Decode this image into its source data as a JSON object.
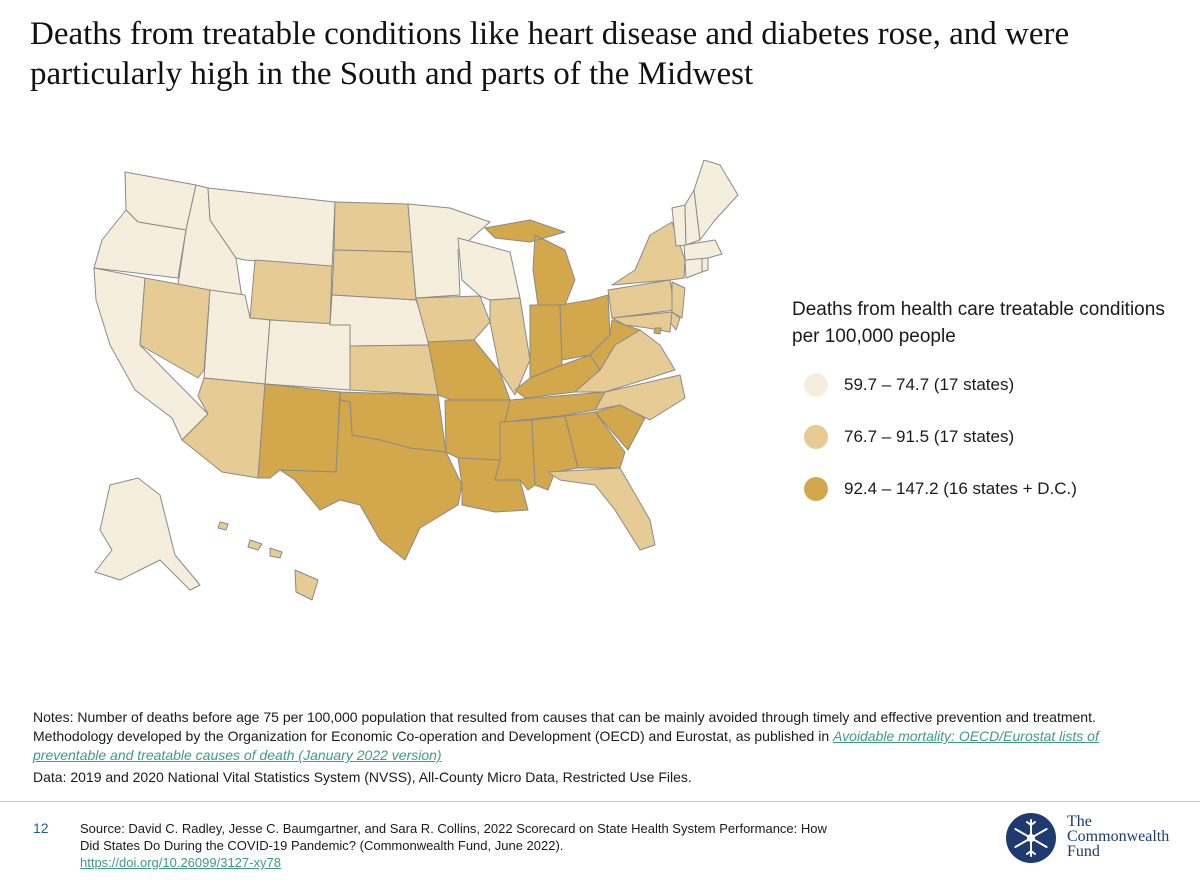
{
  "title": "Deaths from treatable conditions like heart disease and diabetes rose, and were particularly high in the South and parts of the Midwest",
  "legend": {
    "title": "Deaths from health care treatable conditions per 100,000 people",
    "items": [
      {
        "label": "59.7 – 74.7 (17 states)",
        "color": "#f5eedd"
      },
      {
        "label": "76.7 – 91.5 (17 states)",
        "color": "#e6cc94"
      },
      {
        "label": "92.4 – 147.2 (16 states + D.C.)",
        "color": "#d3a84c"
      }
    ]
  },
  "notes": {
    "text": "Notes: Number of deaths before age 75 per 100,000 population that resulted from causes that can be mainly avoided through timely and effective prevention and treatment. Methodology developed by the Organization for Economic Co-operation and Development (OECD) and Eurostat, as published in ",
    "link": "Avoidable mortality: OECD/Eurostat lists of preventable and treatable causes of death (January 2022 version)",
    "data": "Data: 2019 and 2020 National Vital Statistics System (NVSS), All-County Micro Data, Restricted Use Files."
  },
  "footer": {
    "page_number": "12",
    "source": "Source: David C. Radley, Jesse C. Baumgartner, and Sara R. Collins, 2022 Scorecard on State Health System Performance: How Did States Do During the COVID-19 Pandemic? (Commonwealth Fund, June 2022).",
    "doi": "https://doi.org/10.26099/3127-xy78"
  },
  "logo": {
    "line1": "The",
    "line2": "Commonwealth",
    "line3": "Fund",
    "color": "#1e3a6e"
  },
  "map": {
    "colors": {
      "low": "#f5eedd",
      "mid": "#e6cc94",
      "high": "#d3a84c",
      "border": "#8a8a8a"
    },
    "states": [
      {
        "id": "WA",
        "tier": "low"
      },
      {
        "id": "OR",
        "tier": "low"
      },
      {
        "id": "CA",
        "tier": "low"
      },
      {
        "id": "ID",
        "tier": "low"
      },
      {
        "id": "NV",
        "tier": "mid"
      },
      {
        "id": "MT",
        "tier": "low"
      },
      {
        "id": "WY",
        "tier": "mid"
      },
      {
        "id": "UT",
        "tier": "low"
      },
      {
        "id": "AZ",
        "tier": "mid"
      },
      {
        "id": "CO",
        "tier": "low"
      },
      {
        "id": "NM",
        "tier": "high"
      },
      {
        "id": "ND",
        "tier": "mid"
      },
      {
        "id": "SD",
        "tier": "mid"
      },
      {
        "id": "NE",
        "tier": "low"
      },
      {
        "id": "KS",
        "tier": "mid"
      },
      {
        "id": "OK",
        "tier": "high"
      },
      {
        "id": "TX",
        "tier": "high"
      },
      {
        "id": "MN",
        "tier": "low"
      },
      {
        "id": "IA",
        "tier": "mid"
      },
      {
        "id": "MO",
        "tier": "high"
      },
      {
        "id": "AR",
        "tier": "high"
      },
      {
        "id": "LA",
        "tier": "high"
      },
      {
        "id": "WI",
        "tier": "low"
      },
      {
        "id": "IL",
        "tier": "mid"
      },
      {
        "id": "MI",
        "tier": "high"
      },
      {
        "id": "IN",
        "tier": "high"
      },
      {
        "id": "OH",
        "tier": "high"
      },
      {
        "id": "KY",
        "tier": "high"
      },
      {
        "id": "TN",
        "tier": "high"
      },
      {
        "id": "MS",
        "tier": "high"
      },
      {
        "id": "AL",
        "tier": "high"
      },
      {
        "id": "GA",
        "tier": "high"
      },
      {
        "id": "FL",
        "tier": "mid"
      },
      {
        "id": "SC",
        "tier": "high"
      },
      {
        "id": "NC",
        "tier": "mid"
      },
      {
        "id": "VA",
        "tier": "mid"
      },
      {
        "id": "WV",
        "tier": "high"
      },
      {
        "id": "PA",
        "tier": "mid"
      },
      {
        "id": "NY",
        "tier": "mid"
      },
      {
        "id": "NJ",
        "tier": "mid"
      },
      {
        "id": "DE",
        "tier": "mid"
      },
      {
        "id": "MD",
        "tier": "mid"
      },
      {
        "id": "DC",
        "tier": "high"
      },
      {
        "id": "CT",
        "tier": "low"
      },
      {
        "id": "RI",
        "tier": "low"
      },
      {
        "id": "MA",
        "tier": "low"
      },
      {
        "id": "VT",
        "tier": "low"
      },
      {
        "id": "NH",
        "tier": "low"
      },
      {
        "id": "ME",
        "tier": "low"
      },
      {
        "id": "AK",
        "tier": "low"
      },
      {
        "id": "HI",
        "tier": "mid"
      }
    ]
  }
}
